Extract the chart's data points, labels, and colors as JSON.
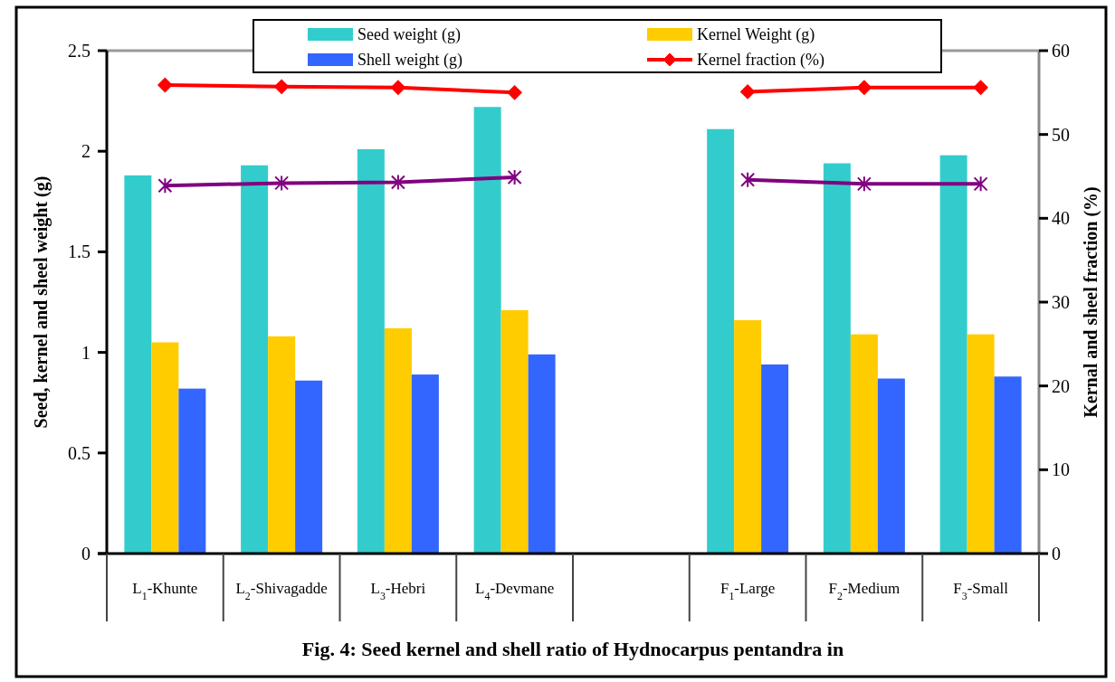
{
  "chart_data": {
    "type": "bar",
    "title": "Fig. 4: Seed kernel and shell ratio of Hydnocarpus pentandra in",
    "ylabel": "Seed, kernel and sheel weight (g)",
    "y2label": "Kernal and sheel fraction (%)",
    "categories": [
      "L$_{1}$-Khunte",
      "L$_{2}$-Shivagadde",
      "L$_{3}$-Hebri",
      "L$_{4}$-Devmane",
      null,
      "F$_{1}$-Large",
      "F$_{2}$-Medium",
      "F$_{3}$-Small"
    ],
    "series": [
      {
        "name": "Seed weight (g)",
        "color": "#33cccc",
        "values": [
          1.88,
          1.93,
          2.01,
          2.22,
          null,
          2.11,
          1.94,
          1.98
        ]
      },
      {
        "name": "Kernel Weight (g)",
        "color": "#ffcc00",
        "values": [
          1.05,
          1.08,
          1.12,
          1.21,
          null,
          1.16,
          1.09,
          1.09
        ]
      },
      {
        "name": "Shell weight (g)",
        "color": "#3366ff",
        "values": [
          0.82,
          0.86,
          0.89,
          0.99,
          null,
          0.94,
          0.87,
          0.88
        ]
      },
      {
        "name": "Kernel fraction (%)",
        "type": "line",
        "axis": "y2",
        "marker": "diamond",
        "color": "#ff0000",
        "values": [
          55.9,
          55.7,
          55.6,
          55.0,
          null,
          55.1,
          55.6,
          55.6
        ]
      },
      {
        "type": "line",
        "axis": "y2",
        "marker": "cross",
        "color": "#800080",
        "values": [
          43.9,
          44.2,
          44.3,
          44.9,
          null,
          44.6,
          44.1,
          44.1
        ]
      }
    ],
    "ylim": [
      0,
      2.5
    ],
    "yticks": [
      0,
      0.5,
      1,
      1.5,
      2,
      2.5
    ],
    "y2lim": [
      0,
      60
    ],
    "y2ticks": [
      0,
      10,
      20,
      30,
      40,
      50,
      60
    ],
    "legend": "top",
    "grid": false
  }
}
